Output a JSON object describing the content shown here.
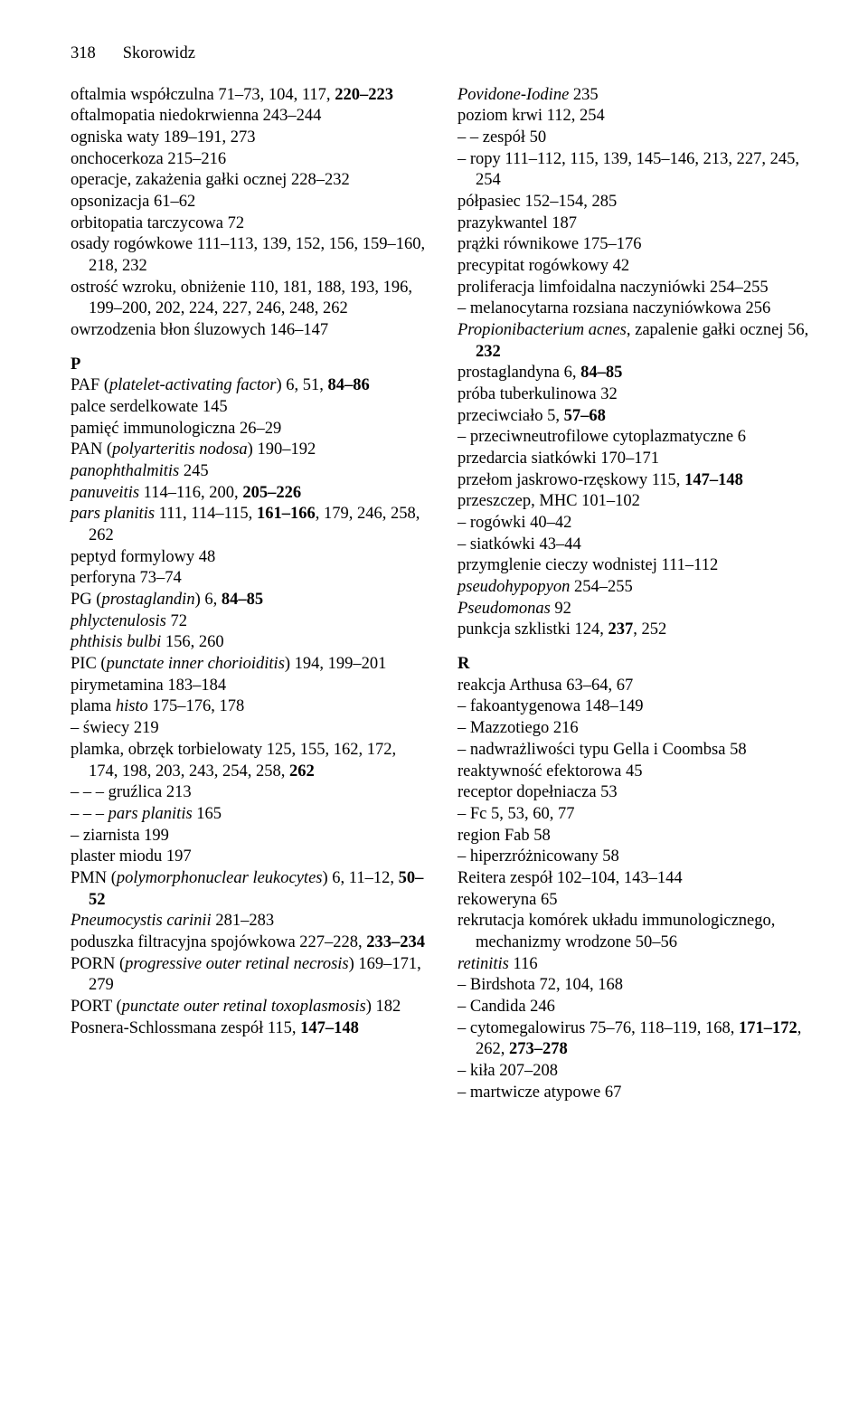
{
  "header": {
    "page_number": "318",
    "title": "Skorowidz"
  },
  "left_column": {
    "entries_1": [
      {
        "html": "oftalmia współczulna 71–73, 104, 117, <span class=\"bold\">220–223</span>"
      },
      {
        "html": "oftalmopatia niedokrwienna 243–244"
      },
      {
        "html": "ogniska waty 189–191, 273"
      },
      {
        "html": "onchocerkoza 215–216"
      },
      {
        "html": "operacje, zakażenia gałki ocznej 228–232"
      },
      {
        "html": "opsonizacja 61–62"
      },
      {
        "html": "orbitopatia tarczycowa 72"
      },
      {
        "html": "osady rogówkowe 111–113, 139, 152, 156, 159–160, 218, 232"
      },
      {
        "html": "ostrość wzroku, obniżenie 110, 181, 188, 193, 196, 199–200, 202, 224, 227, 246, 248, 262"
      },
      {
        "html": "owrzodzenia błon śluzowych 146–147"
      }
    ],
    "section_P": "P",
    "entries_2": [
      {
        "html": "PAF (<span class=\"italic\">platelet-activating factor</span>) 6, 51, <span class=\"bold\">84–86</span>"
      },
      {
        "html": "palce serdelkowate 145"
      },
      {
        "html": "pamięć immunologiczna 26–29"
      },
      {
        "html": "PAN (<span class=\"italic\">polyarteritis nodosa</span>) 190–192"
      },
      {
        "html": "<span class=\"italic\">panophthalmitis</span> 245"
      },
      {
        "html": "<span class=\"italic\">panuveitis</span> 114–116, 200, <span class=\"bold\">205–226</span>"
      },
      {
        "html": "<span class=\"italic\">pars planitis</span> 111, 114–115, <span class=\"bold\">161–166</span>, 179, 246, 258, 262"
      },
      {
        "html": "peptyd formylowy 48"
      },
      {
        "html": "perforyna 73–74"
      },
      {
        "html": "PG (<span class=\"italic\">prostaglandin</span>) 6, <span class=\"bold\">84–85</span>"
      },
      {
        "html": "<span class=\"italic\">phlyctenulosis</span> 72"
      },
      {
        "html": "<span class=\"italic\">phthisis bulbi</span> 156, 260"
      },
      {
        "html": "PIC (<span class=\"italic\">punctate inner chorioiditis</span>) 194, 199–201"
      },
      {
        "html": "pirymetamina 183–184"
      },
      {
        "html": "plama <span class=\"italic\">histo</span> 175–176, 178"
      },
      {
        "html": "– świecy 219"
      },
      {
        "html": "plamka, obrzęk torbielowaty 125, 155, 162, 172, 174, 198, 203, 243, 254, 258, <span class=\"bold\">262</span>"
      },
      {
        "html": "– – – gruźlica 213"
      },
      {
        "html": "– – – <span class=\"italic\">pars planitis</span> 165"
      },
      {
        "html": "– ziarnista 199"
      },
      {
        "html": "plaster miodu 197"
      },
      {
        "html": "PMN (<span class=\"italic\">polymorphonuclear leukocytes</span>) 6, 11–12, <span class=\"bold\">50–52</span>"
      },
      {
        "html": "<span class=\"italic\">Pneumocystis carinii</span> 281–283"
      },
      {
        "html": "poduszka filtracyjna spojówkowa 227–228, <span class=\"bold\">233–234</span>"
      },
      {
        "html": "PORN (<span class=\"italic\">progressive outer retinal necrosis</span>) 169–171, 279"
      },
      {
        "html": "PORT (<span class=\"italic\">punctate outer retinal toxoplasmosis</span>) 182"
      },
      {
        "html": "Posnera-Schlossmana zespół 115, <span class=\"bold\">147–148</span>"
      }
    ]
  },
  "right_column": {
    "entries_1": [
      {
        "html": "<span class=\"italic\">Povidone-Iodine</span> 235"
      },
      {
        "html": "poziom krwi 112, 254"
      },
      {
        "html": "– – zespół 50"
      },
      {
        "html": "– ropy 111–112, 115, 139, 145–146, 213, 227, 245, 254"
      },
      {
        "html": "półpasiec 152–154, 285"
      },
      {
        "html": "prazykwantel 187"
      },
      {
        "html": "prążki równikowe 175–176"
      },
      {
        "html": "precypitat rogówkowy 42"
      },
      {
        "html": "proliferacja limfoidalna naczyniówki 254–255"
      },
      {
        "html": "– melanocytarna rozsiana naczyniówkowa 256"
      },
      {
        "html": "<span class=\"italic\">Propionibacterium acnes</span>, zapalenie gałki ocznej 56, <span class=\"bold\">232</span>"
      },
      {
        "html": "prostaglandyna 6, <span class=\"bold\">84–85</span>"
      },
      {
        "html": "próba tuberkulinowa 32"
      },
      {
        "html": "przeciwciało 5, <span class=\"bold\">57–68</span>"
      },
      {
        "html": "– przeciwneutrofilowe cytoplazmatyczne 6"
      },
      {
        "html": "przedarcia siatkówki 170–171"
      },
      {
        "html": "przełom jaskrowo-rzęskowy 115, <span class=\"bold\">147–148</span>"
      },
      {
        "html": "przeszczep, MHC 101–102"
      },
      {
        "html": "– rogówki 40–42"
      },
      {
        "html": "– siatkówki 43–44"
      },
      {
        "html": "przymglenie cieczy wodnistej 111–112"
      },
      {
        "html": "<span class=\"italic\">pseudohypopyon</span> 254–255"
      },
      {
        "html": "<span class=\"italic\">Pseudomonas</span> 92"
      },
      {
        "html": "punkcja szklistki 124, <span class=\"bold\">237</span>, 252"
      }
    ],
    "section_R": "R",
    "entries_2": [
      {
        "html": "reakcja Arthusa 63–64, 67"
      },
      {
        "html": "– fakoantygenowa 148–149"
      },
      {
        "html": "– Mazzotiego 216"
      },
      {
        "html": "– nadwrażliwości typu Gella i Coombsa 58"
      },
      {
        "html": "reaktywność efektorowa 45"
      },
      {
        "html": "receptor dopełniacza 53"
      },
      {
        "html": "– Fc 5, 53, 60, 77"
      },
      {
        "html": "region Fab 58"
      },
      {
        "html": "– hiperzróżnicowany 58"
      },
      {
        "html": "Reitera zespół 102–104, 143–144"
      },
      {
        "html": "rekoweryna 65"
      },
      {
        "html": "rekrutacja komórek układu immunologicznego, mechanizmy wrodzone 50–56"
      },
      {
        "html": "<span class=\"italic\">retinitis</span> 116"
      },
      {
        "html": "– Birdshota 72, 104, 168"
      },
      {
        "html": "– Candida 246"
      },
      {
        "html": "– cytomegalowirus 75–76, 118–119, 168, <span class=\"bold\">171–172</span>, 262, <span class=\"bold\">273–278</span>"
      },
      {
        "html": "– kiła 207–208"
      },
      {
        "html": "– martwicze atypowe 67"
      }
    ]
  }
}
